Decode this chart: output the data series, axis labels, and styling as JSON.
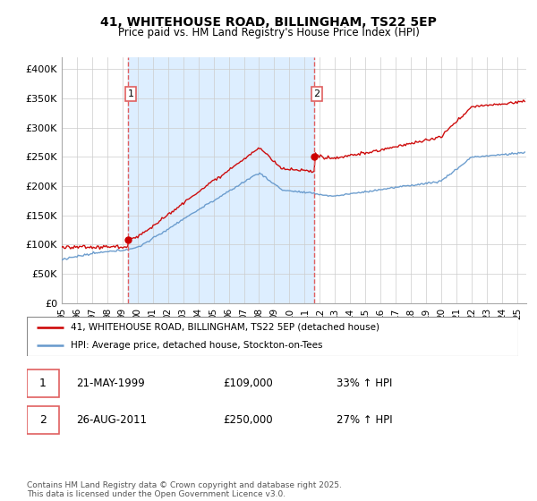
{
  "title": "41, WHITEHOUSE ROAD, BILLINGHAM, TS22 5EP",
  "subtitle": "Price paid vs. HM Land Registry's House Price Index (HPI)",
  "ylim": [
    0,
    420000
  ],
  "yticks": [
    0,
    50000,
    100000,
    150000,
    200000,
    250000,
    300000,
    350000,
    400000
  ],
  "ytick_labels": [
    "£0",
    "£50K",
    "£100K",
    "£150K",
    "£200K",
    "£250K",
    "£300K",
    "£350K",
    "£400K"
  ],
  "purchase1_date": 1999.38,
  "purchase1_price": 109000,
  "purchase2_date": 2011.65,
  "purchase2_price": 250000,
  "red_line_color": "#cc0000",
  "blue_line_color": "#6699cc",
  "grid_color": "#cccccc",
  "vline_color": "#e06060",
  "shade_color": "#ddeeff",
  "legend_label_red": "41, WHITEHOUSE ROAD, BILLINGHAM, TS22 5EP (detached house)",
  "legend_label_blue": "HPI: Average price, detached house, Stockton-on-Tees",
  "ann1_date": "21-MAY-1999",
  "ann1_price": "£109,000",
  "ann1_pct": "33% ↑ HPI",
  "ann2_date": "26-AUG-2011",
  "ann2_price": "£250,000",
  "ann2_pct": "27% ↑ HPI",
  "copyright_text": "Contains HM Land Registry data © Crown copyright and database right 2025.\nThis data is licensed under the Open Government Licence v3.0.",
  "background_color": "#ffffff",
  "plot_background": "#f0f4f8"
}
